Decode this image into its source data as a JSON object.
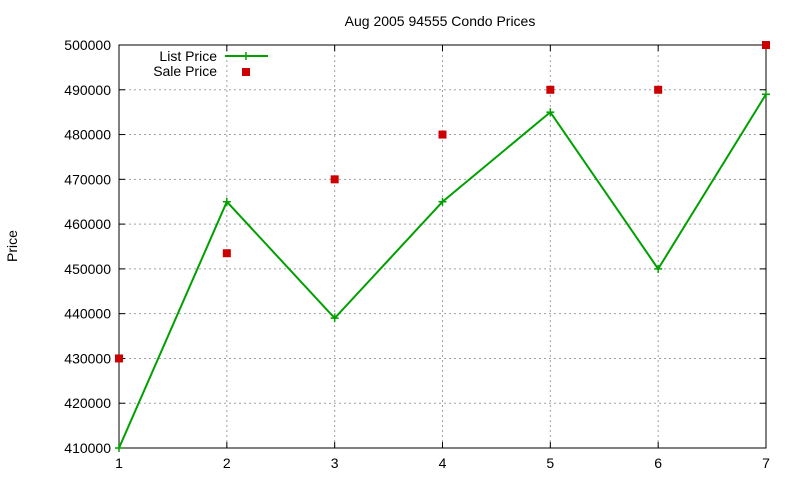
{
  "chart_data": {
    "type": "line",
    "title": "Aug 2005 94555 Condo Prices",
    "xlabel": "",
    "ylabel": "Price",
    "x": [
      1,
      2,
      3,
      4,
      5,
      6,
      7
    ],
    "xlim": [
      1,
      7
    ],
    "ylim": [
      410000,
      500000
    ],
    "x_ticks": [
      1,
      2,
      3,
      4,
      5,
      6,
      7
    ],
    "y_ticks": [
      410000,
      420000,
      430000,
      440000,
      450000,
      460000,
      470000,
      480000,
      490000,
      500000
    ],
    "grid": true,
    "legend_position": "top-left",
    "series": [
      {
        "name": "List Price",
        "style": "line-with-plus-markers",
        "color": "#00a000",
        "values": [
          410000,
          465000,
          439000,
          465000,
          485000,
          450000,
          489000
        ]
      },
      {
        "name": "Sale Price",
        "style": "square-points",
        "color": "#cc0000",
        "values": [
          430000,
          453500,
          470000,
          480000,
          490000,
          490000,
          500000
        ]
      }
    ]
  }
}
